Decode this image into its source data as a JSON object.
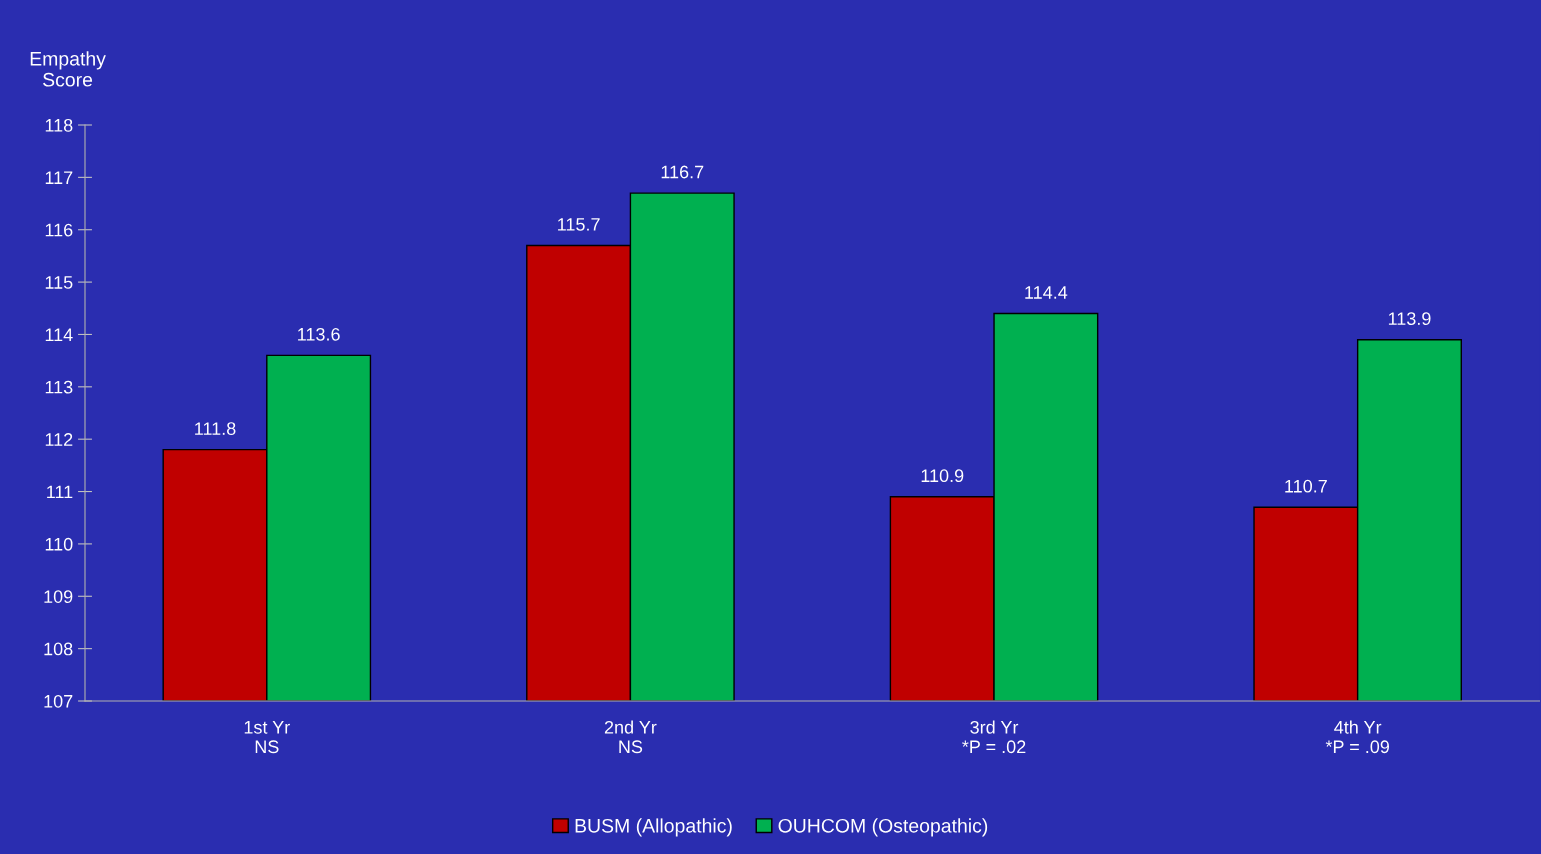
{
  "chart_data": {
    "type": "bar",
    "ylabel": "Empathy\nScore",
    "categories": [
      "1st Yr\nNS",
      "2nd Yr\nNS",
      "3rd Yr\n*P = .02",
      "4th Yr\n*P = .09"
    ],
    "series": [
      {
        "name": "BUSM (Allopathic)",
        "color": "#c00000",
        "values": [
          111.8,
          115.7,
          110.9,
          110.7
        ]
      },
      {
        "name": "OUHCOM (Osteopathic)",
        "color": "#00b050",
        "values": [
          113.6,
          116.7,
          114.4,
          113.9
        ]
      }
    ],
    "ylim": [
      107,
      118
    ],
    "yticks": [
      107,
      108,
      109,
      110,
      111,
      112,
      113,
      114,
      115,
      116,
      117,
      118
    ],
    "data_labels": true,
    "grid": false,
    "legend": "bottom"
  }
}
